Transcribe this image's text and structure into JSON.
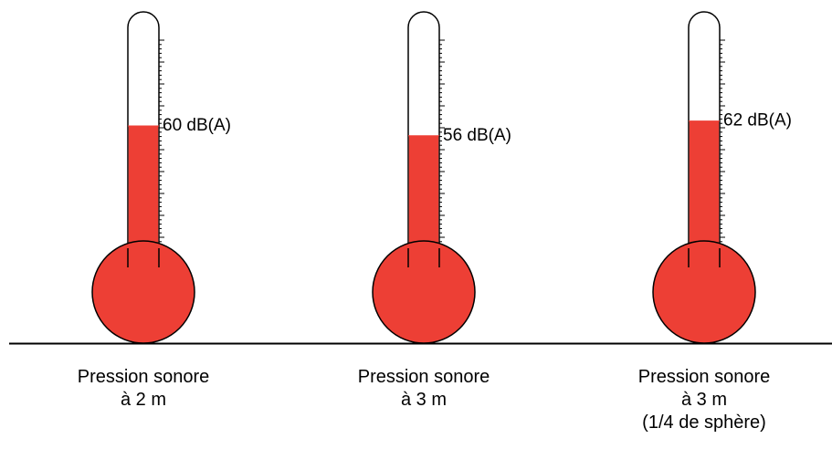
{
  "colors": {
    "fill": "#ed3f35",
    "outline": "#000000",
    "background": "#ffffff"
  },
  "scale": {
    "top_value": 100,
    "bottom_value": 0
  },
  "thermometers": [
    {
      "value": 60,
      "value_label": "60 dB(A)",
      "caption": [
        "Pression sonore",
        "à 2 m"
      ]
    },
    {
      "value": 56,
      "value_label": "56 dB(A)",
      "caption": [
        "Pression sonore",
        "à 3 m"
      ]
    },
    {
      "value": 62,
      "value_label": "62 dB(A)",
      "caption": [
        "Pression sonore",
        "à 3 m",
        "(1/4 de sphère)"
      ]
    }
  ]
}
